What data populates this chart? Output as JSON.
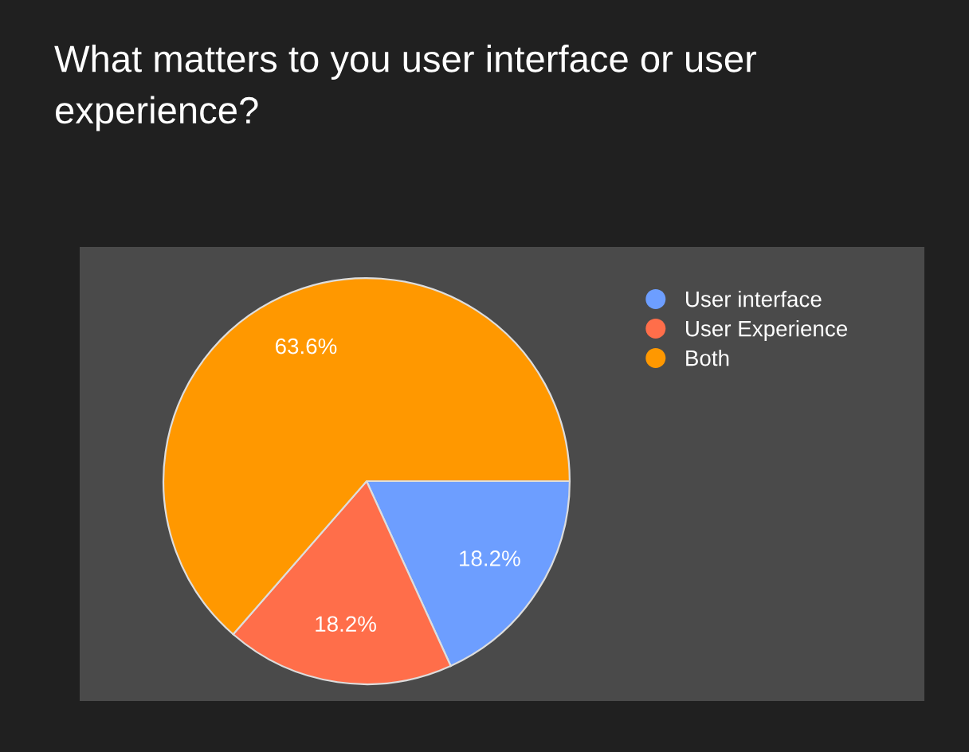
{
  "chart_data": {
    "type": "pie",
    "title": "What matters to you user interface or user experience?",
    "categories": [
      "User interface",
      "User Experience",
      "Both"
    ],
    "values": [
      18.2,
      18.2,
      63.6
    ],
    "colors": [
      "#6d9eff",
      "#ff6e4a",
      "#ff9800"
    ],
    "value_labels": [
      "18.2%",
      "18.2%",
      "63.6%"
    ],
    "legend": "top right"
  }
}
